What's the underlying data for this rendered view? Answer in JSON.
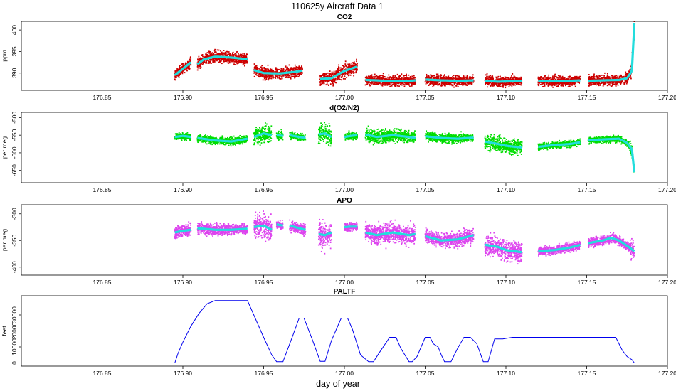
{
  "figure": {
    "title": "110625y   Aircraft Data 1",
    "xlabel": "day of year"
  },
  "colors": {
    "co2_points": "#cc0000",
    "o2n2_points": "#00dd00",
    "apo_points": "#dd44ee",
    "smooth_line": "#22dddd",
    "paltf_line": "#0000ee"
  },
  "chart_data": [
    {
      "type": "scatter",
      "title": "CO2",
      "ylabel": "ppm",
      "xlim": [
        176.8,
        177.2
      ],
      "ylim": [
        386,
        402
      ],
      "xticks": [
        176.85,
        176.9,
        176.95,
        177.0,
        177.05,
        177.1,
        177.15,
        177.2
      ],
      "xtick_labels": [
        "176.85",
        "176.90",
        "176.95",
        "177.00",
        "177.05",
        "177.10",
        "177.15",
        "177.20"
      ],
      "yticks": [
        390,
        395,
        400
      ],
      "ytick_labels": [
        "390",
        "395",
        "400"
      ],
      "series": [
        {
          "role": "points",
          "segments": [
            {
              "x": [
                176.895,
                176.9,
                176.905
              ],
              "y": [
                389.5,
                391.0,
                392.5
              ],
              "noise": 0.9
            },
            {
              "x": [
                176.909,
                176.913,
                176.92,
                176.93,
                176.94
              ],
              "y": [
                392.0,
                393.2,
                393.8,
                393.6,
                393.2
              ],
              "noise": 1.0
            },
            {
              "x": [
                176.944,
                176.95,
                176.96,
                176.97,
                176.974
              ],
              "y": [
                390.7,
                390.0,
                389.9,
                390.3,
                390.6
              ],
              "noise": 1.0
            },
            {
              "x": [
                176.985,
                176.992,
                177.0,
                177.008
              ],
              "y": [
                388.6,
                388.8,
                390.5,
                391.5
              ],
              "noise": 1.2
            },
            {
              "x": [
                177.013,
                177.02,
                177.03,
                177.04,
                177.044
              ],
              "y": [
                388.4,
                388.3,
                388.1,
                388.2,
                388.3
              ],
              "noise": 0.9
            },
            {
              "x": [
                177.05,
                177.06,
                177.07,
                177.08
              ],
              "y": [
                388.5,
                388.3,
                388.2,
                388.3
              ],
              "noise": 0.9
            },
            {
              "x": [
                177.087,
                177.095,
                177.105,
                177.11
              ],
              "y": [
                388.2,
                388.0,
                388.1,
                388.2
              ],
              "noise": 0.9
            },
            {
              "x": [
                177.12,
                177.13,
                177.14,
                177.146
              ],
              "y": [
                388.2,
                388.1,
                388.2,
                388.3
              ],
              "noise": 0.9
            },
            {
              "x": [
                177.151,
                177.16,
                177.17,
                177.175,
                177.178,
                177.1795
              ],
              "y": [
                388.2,
                388.3,
                388.4,
                388.8,
                390.5,
                401.5
              ],
              "noise": 0.9
            }
          ]
        }
      ]
    },
    {
      "type": "scatter",
      "title": "d(O2/N2)",
      "ylabel": "per meg",
      "xlim": [
        176.8,
        177.2
      ],
      "ylim": [
        -685,
        -485
      ],
      "xticks": [
        176.85,
        176.9,
        176.95,
        177.0,
        177.05,
        177.1,
        177.15,
        177.2
      ],
      "xtick_labels": [
        "176.85",
        "176.90",
        "176.95",
        "177.00",
        "177.05",
        "177.10",
        "177.15",
        "177.20"
      ],
      "yticks": [
        -650,
        -600,
        -550,
        -500
      ],
      "ytick_labels": [
        "-650",
        "-600",
        "-550",
        "-500"
      ],
      "series": [
        {
          "role": "points",
          "segments": [
            {
              "x": [
                176.895,
                176.9,
                176.905
              ],
              "y": [
                -555,
                -552,
                -555
              ],
              "noise": 8
            },
            {
              "x": [
                176.909,
                176.92,
                176.93,
                176.94
              ],
              "y": [
                -558,
                -565,
                -568,
                -560
              ],
              "noise": 8
            },
            {
              "x": [
                176.944,
                176.95,
                176.955
              ],
              "y": [
                -555,
                -545,
                -550
              ],
              "noise": 18
            },
            {
              "x": [
                176.958,
                176.962
              ],
              "y": [
                -550,
                -552
              ],
              "noise": 10
            },
            {
              "x": [
                176.966,
                176.972,
                176.976
              ],
              "y": [
                -550,
                -555,
                -558
              ],
              "noise": 8
            },
            {
              "x": [
                176.984,
                176.988,
                176.992
              ],
              "y": [
                -548,
                -545,
                -555
              ],
              "noise": 20
            },
            {
              "x": [
                177.0,
                177.004,
                177.008
              ],
              "y": [
                -555,
                -552,
                -550
              ],
              "noise": 8
            },
            {
              "x": [
                177.013,
                177.02,
                177.03,
                177.04,
                177.044
              ],
              "y": [
                -548,
                -555,
                -550,
                -555,
                -558
              ],
              "noise": 14
            },
            {
              "x": [
                177.05,
                177.06,
                177.07,
                177.08
              ],
              "y": [
                -553,
                -558,
                -560,
                -557
              ],
              "noise": 10
            },
            {
              "x": [
                177.087,
                177.095,
                177.1,
                177.11
              ],
              "y": [
                -568,
                -575,
                -580,
                -585
              ],
              "noise": 16
            },
            {
              "x": [
                177.12,
                177.13,
                177.14,
                177.146
              ],
              "y": [
                -583,
                -578,
                -575,
                -570
              ],
              "noise": 7
            },
            {
              "x": [
                177.151,
                177.16,
                177.17,
                177.175,
                177.178,
                177.1795
              ],
              "y": [
                -565,
                -562,
                -560,
                -572,
                -590,
                -655
              ],
              "noise": 7
            }
          ]
        }
      ]
    },
    {
      "type": "scatter",
      "title": "APO",
      "ylabel": "per meg",
      "xlim": [
        176.8,
        177.2
      ],
      "ylim": [
        -415,
        -283
      ],
      "xticks": [
        176.85,
        176.9,
        176.95,
        177.0,
        177.05,
        177.1,
        177.15,
        177.2
      ],
      "xtick_labels": [
        "176.85",
        "176.90",
        "176.95",
        "177.00",
        "177.05",
        "177.10",
        "177.15",
        "177.20"
      ],
      "yticks": [
        -400,
        -350,
        -300
      ],
      "ytick_labels": [
        "-400",
        "-350",
        "-300"
      ],
      "series": [
        {
          "role": "points",
          "segments": [
            {
              "x": [
                176.895,
                176.9,
                176.905
              ],
              "y": [
                -335,
                -332,
                -330
              ],
              "noise": 9
            },
            {
              "x": [
                176.909,
                176.92,
                176.93,
                176.94
              ],
              "y": [
                -327,
                -330,
                -330,
                -328
              ],
              "noise": 8
            },
            {
              "x": [
                176.944,
                176.95,
                176.955
              ],
              "y": [
                -325,
                -322,
                -330
              ],
              "noise": 16
            },
            {
              "x": [
                176.958,
                176.962
              ],
              "y": [
                -320,
                -322
              ],
              "noise": 6
            },
            {
              "x": [
                176.966,
                176.972,
                176.976
              ],
              "y": [
                -322,
                -327,
                -330
              ],
              "noise": 8
            },
            {
              "x": [
                176.984,
                176.988,
                176.992
              ],
              "y": [
                -338,
                -340,
                -335
              ],
              "noise": 20
            },
            {
              "x": [
                177.0,
                177.004,
                177.008
              ],
              "y": [
                -325,
                -324,
                -324
              ],
              "noise": 6
            },
            {
              "x": [
                177.013,
                177.02,
                177.03,
                177.04,
                177.044
              ],
              "y": [
                -335,
                -340,
                -335,
                -340,
                -338
              ],
              "noise": 14
            },
            {
              "x": [
                177.05,
                177.06,
                177.07,
                177.08
              ],
              "y": [
                -342,
                -350,
                -348,
                -340
              ],
              "noise": 10
            },
            {
              "x": [
                177.087,
                177.095,
                177.1,
                177.11
              ],
              "y": [
                -358,
                -362,
                -368,
                -372
              ],
              "noise": 15
            },
            {
              "x": [
                177.12,
                177.13,
                177.14,
                177.146
              ],
              "y": [
                -370,
                -368,
                -363,
                -358
              ],
              "noise": 6
            },
            {
              "x": [
                177.151,
                177.16,
                177.165,
                177.17,
                177.175,
                177.1795
              ],
              "y": [
                -355,
                -350,
                -345,
                -350,
                -360,
                -370
              ],
              "noise": 7
            }
          ]
        }
      ]
    },
    {
      "type": "line",
      "title": "PALTF",
      "ylabel": "feet",
      "xlim": [
        176.8,
        177.2
      ],
      "ylim": [
        -2000,
        42000
      ],
      "xticks": [
        176.85,
        176.9,
        176.95,
        177.0,
        177.05,
        177.1,
        177.15,
        177.2
      ],
      "xtick_labels": [
        "176.85",
        "176.90",
        "176.95",
        "177.00",
        "177.05",
        "177.10",
        "177.15",
        "177.20"
      ],
      "yticks": [
        0,
        10000,
        20000,
        30000
      ],
      "ytick_labels": [
        "0",
        "10000",
        "20000",
        "30000"
      ],
      "series": [
        {
          "role": "altitude",
          "x": [
            176.895,
            176.897,
            176.9,
            176.905,
            176.91,
            176.915,
            176.92,
            176.93,
            176.94,
            176.95,
            176.955,
            176.958,
            176.962,
            176.968,
            176.972,
            176.975,
            176.98,
            176.985,
            176.988,
            176.992,
            176.998,
            177.002,
            177.005,
            177.01,
            177.015,
            177.018,
            177.022,
            177.028,
            177.032,
            177.035,
            177.04,
            177.042,
            177.045,
            177.05,
            177.053,
            177.055,
            177.058,
            177.06,
            177.062,
            177.066,
            177.07,
            177.074,
            177.078,
            177.082,
            177.086,
            177.089,
            177.093,
            177.098,
            177.104,
            177.12,
            177.14,
            177.16,
            177.168,
            177.172,
            177.175,
            177.178,
            177.1795
          ],
          "y": [
            0,
            6000,
            13000,
            23000,
            31000,
            37000,
            39000,
            39000,
            39000,
            16000,
            5000,
            800,
            800,
            17000,
            28000,
            28000,
            15000,
            1000,
            1000,
            14000,
            28000,
            28000,
            21000,
            5000,
            800,
            800,
            7000,
            16000,
            16000,
            9000,
            800,
            800,
            4000,
            16000,
            16000,
            12000,
            10000,
            5000,
            800,
            800,
            9000,
            16000,
            16000,
            12000,
            800,
            800,
            15000,
            15000,
            16000,
            16000,
            16000,
            16000,
            16000,
            8000,
            4000,
            2000,
            0
          ]
        }
      ]
    }
  ]
}
